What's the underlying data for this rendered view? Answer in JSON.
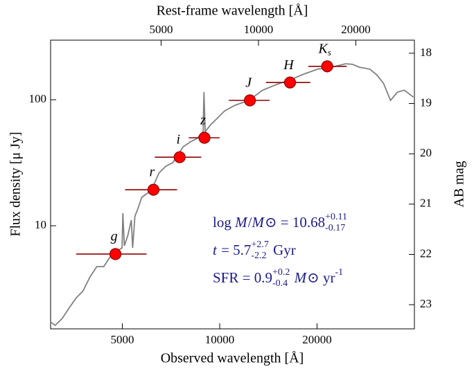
{
  "chart_data": {
    "type": "sed",
    "xlabel": "Observed wavelength [Å]",
    "x2label": "Rest-frame wavelength [Å]",
    "ylabel": "Flux density  [μ Jy]",
    "y2label": "AB mag",
    "xscale": "log",
    "yscale": "log",
    "xlim": [
      3000,
      40000
    ],
    "xticks": [
      5000,
      10000,
      20000
    ],
    "x2lim": [
      2276,
      30350
    ],
    "x2ticks": [
      5000,
      10000,
      20000
    ],
    "ylim": [
      1.52,
      297
    ],
    "yticks": [
      10,
      100
    ],
    "y2lim": [
      23.48,
      17.74
    ],
    "y2ticks": [
      18,
      19,
      20,
      21,
      22,
      23
    ],
    "model": {
      "color": "#808080",
      "x": [
        3000,
        3100,
        3260,
        3420,
        3600,
        3780,
        3970,
        4170,
        4380,
        4600,
        4830,
        4990,
        5020,
        5070,
        5200,
        5330,
        5380,
        5470,
        5600,
        5740,
        6030,
        6240,
        6490,
        6820,
        7160,
        7450,
        7710,
        8100,
        8510,
        8890,
        8940,
        9020,
        9380,
        9860,
        10360,
        11150,
        12300,
        13580,
        14980,
        16530,
        18240,
        20120,
        22200,
        24500,
        25730,
        27030,
        29100,
        30570,
        32100,
        33740,
        35440,
        37220,
        39700
      ],
      "values": [
        1.72,
        1.62,
        1.84,
        2.22,
        2.68,
        3.04,
        3.92,
        4.74,
        4.74,
        5.73,
        6.34,
        6.67,
        12.6,
        6.93,
        8.38,
        11.1,
        6.67,
        11.9,
        13.9,
        16.8,
        18.4,
        20.8,
        26.2,
        29.7,
        31.6,
        37.2,
        42.3,
        46.2,
        49.2,
        55.8,
        115,
        55.8,
        63.4,
        71.9,
        81.6,
        90.3,
        98.8,
        119,
        132,
        144,
        160,
        175,
        181,
        193,
        191,
        181,
        175,
        158,
        135,
        98.8,
        115,
        119,
        105
      ]
    },
    "photometry": {
      "color": "#ff0000",
      "edge_color": "#8b0000",
      "error_color": "#8b0000",
      "filters": [
        {
          "name": "g",
          "x": 4760,
          "value": 5.96,
          "x_low": 3600,
          "x_high": 5940
        },
        {
          "name": "r",
          "x": 6240,
          "value": 19.3,
          "x_low": 5100,
          "x_high": 7380
        },
        {
          "name": "i",
          "x": 7520,
          "value": 35,
          "x_low": 6300,
          "x_high": 8770
        },
        {
          "name": "z",
          "x": 8970,
          "value": 49.9,
          "x_low": 8020,
          "x_high": 10000
        },
        {
          "name": "J",
          "x": 12400,
          "value": 98.8,
          "x_low": 10670,
          "x_high": 14260
        },
        {
          "name": "H",
          "x": 16500,
          "value": 137,
          "x_low": 13900,
          "x_high": 19060
        },
        {
          "name": "K",
          "subscript": "s",
          "x": 21500,
          "value": 184,
          "x_low": 18800,
          "x_high": 24700
        }
      ]
    },
    "annotations": [
      [
        {
          "text": "log "
        },
        {
          "text": "M",
          "italic": true
        },
        {
          "text": "/"
        },
        {
          "text": "M",
          "italic": true
        },
        {
          "text": "⊙"
        },
        {
          "text": " = 10.68"
        },
        {
          "sup": "+0.11",
          "sub": "-0.17"
        }
      ],
      [
        {
          "text": "t",
          "italic": true
        },
        {
          "text": " = 5.7"
        },
        {
          "sup": "+2.7",
          "sub": "-2.2"
        },
        {
          "text": " Gyr"
        }
      ],
      [
        {
          "text": "SFR = 0.9"
        },
        {
          "sup": "+0.2",
          "sub": "-0.4"
        },
        {
          "text": " "
        },
        {
          "text": "M",
          "italic": true
        },
        {
          "text": "⊙"
        },
        {
          "text": " yr"
        },
        {
          "sup": "-1"
        }
      ]
    ]
  }
}
